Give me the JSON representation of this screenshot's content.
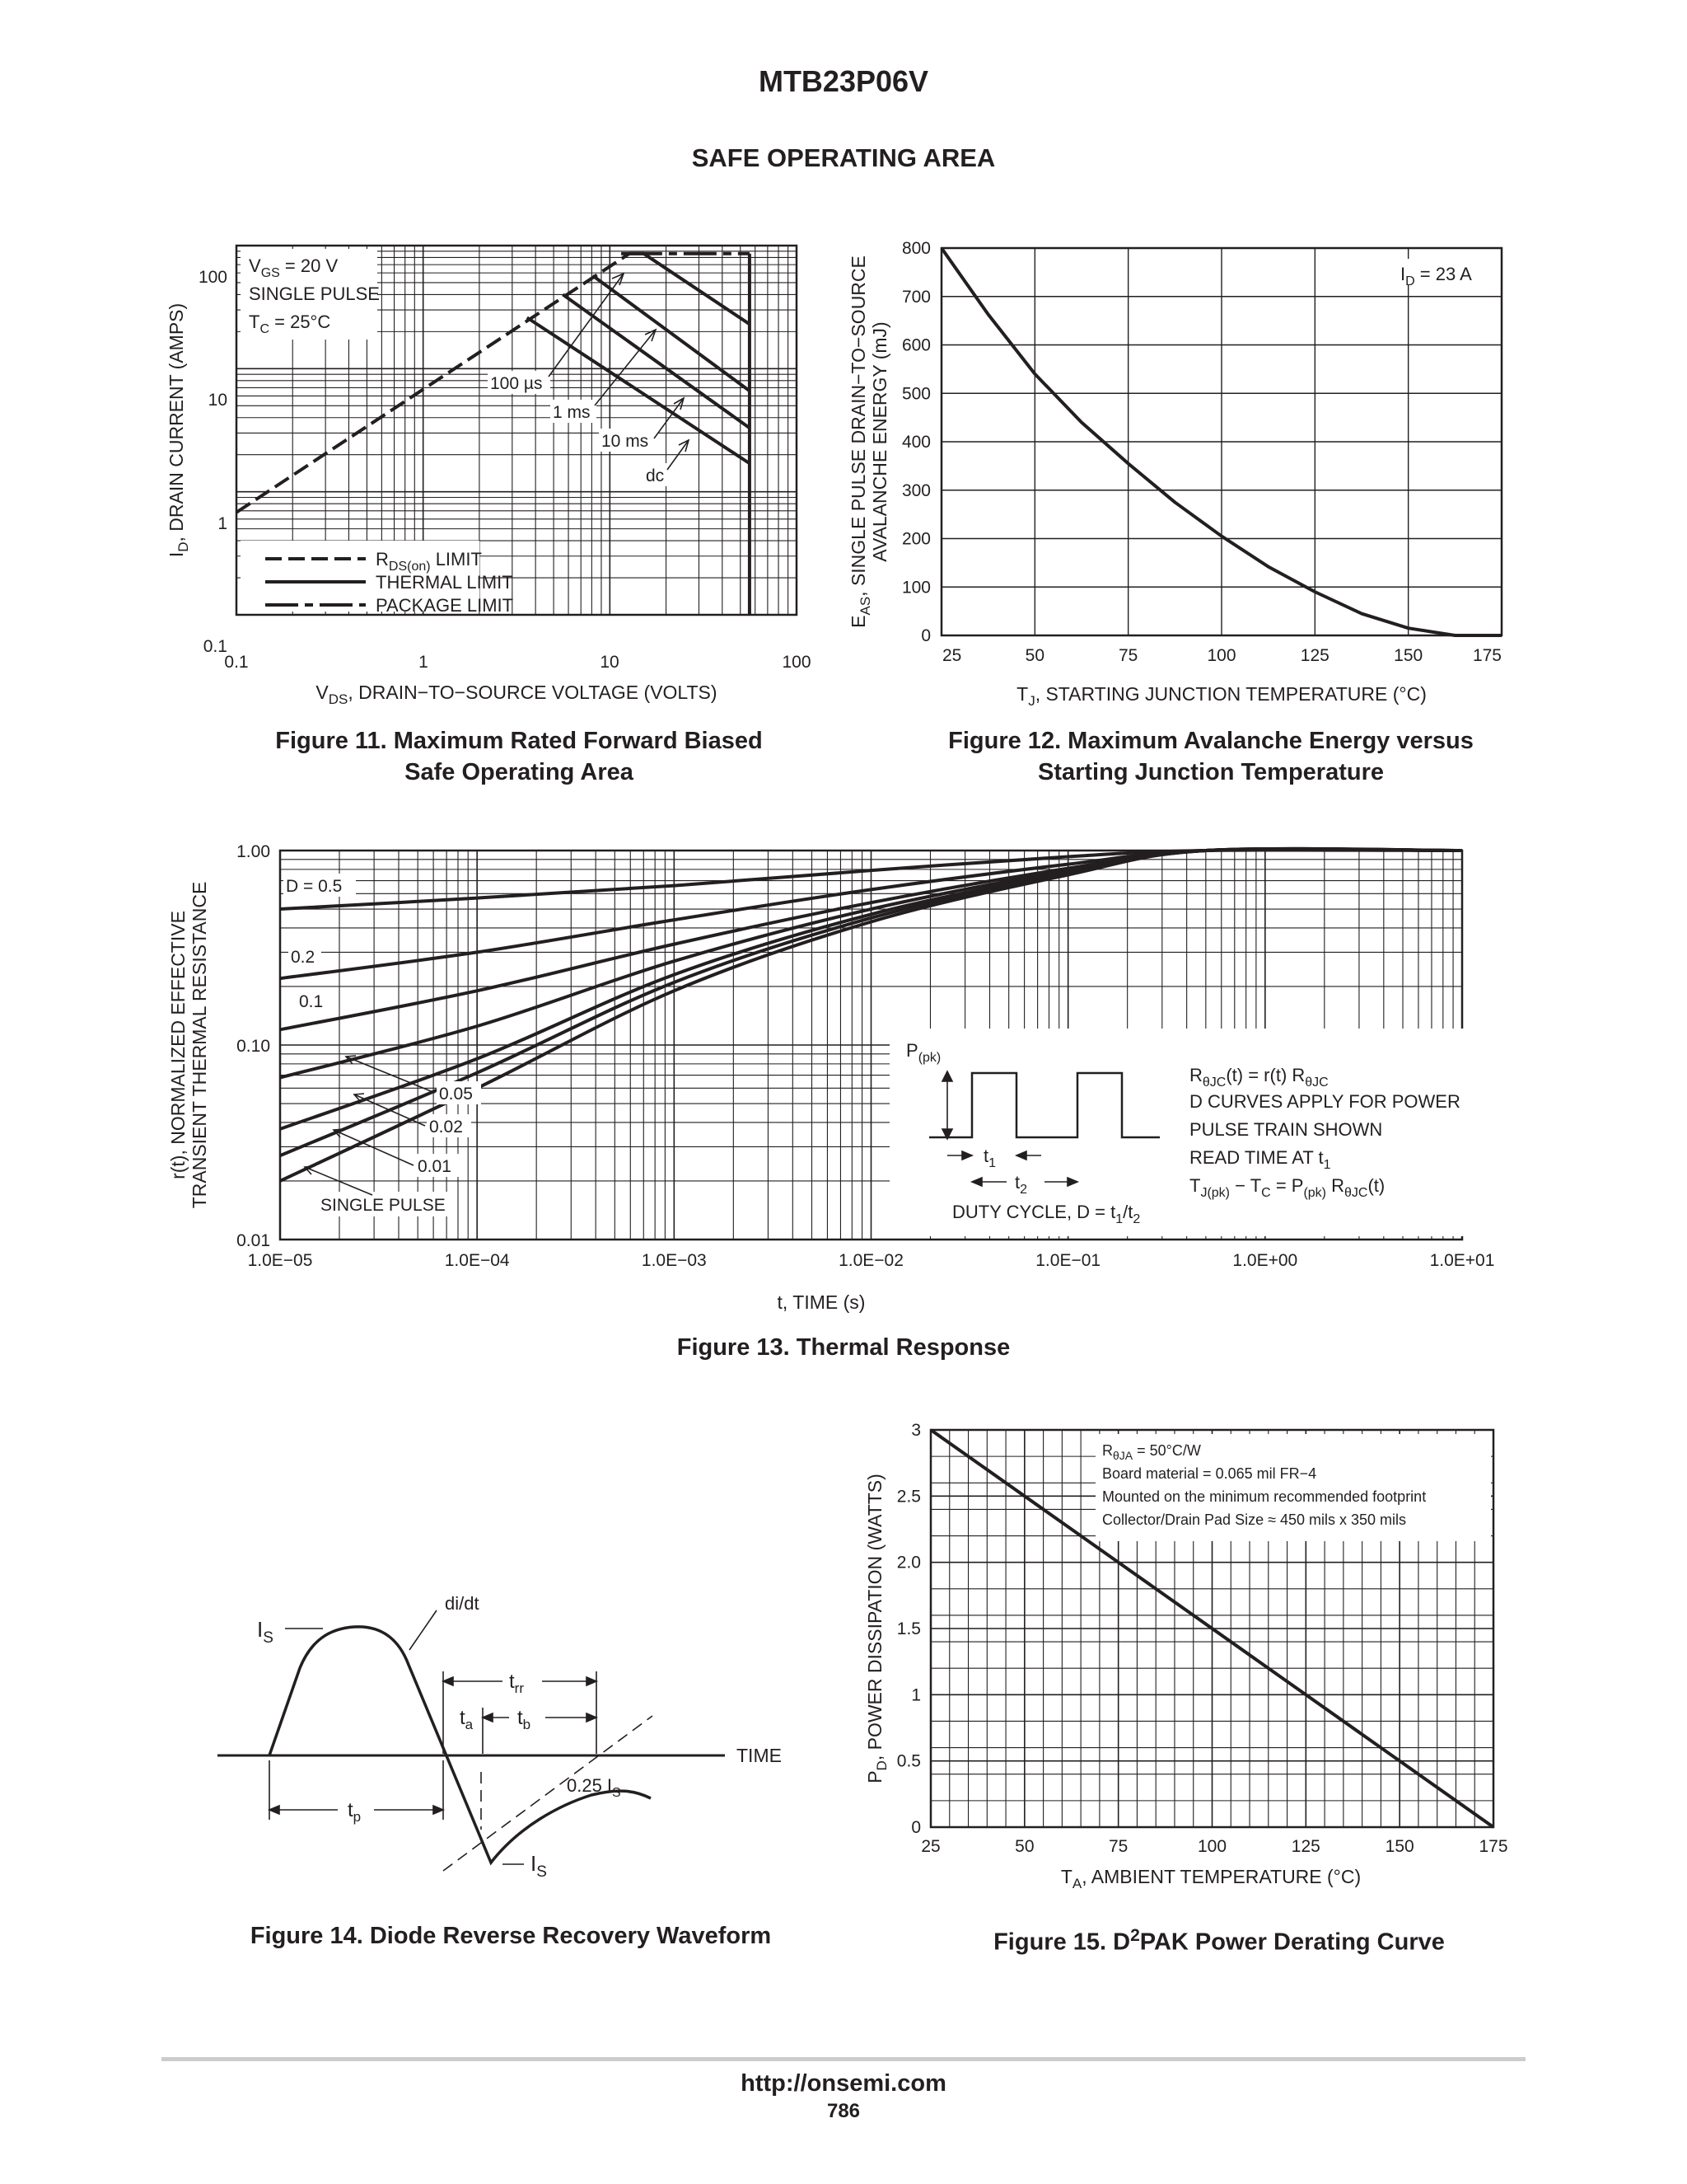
{
  "page": {
    "title": "MTB23P06V",
    "section": "SAFE OPERATING AREA",
    "footer_url": "http://onsemi.com",
    "page_number": "786"
  },
  "captions": {
    "fig11_line1": "Figure 11. Maximum Rated Forward Biased",
    "fig11_line2": "Safe Operating Area",
    "fig12_line1": "Figure 12. Maximum Avalanche Energy versus",
    "fig12_line2": "Starting Junction Temperature",
    "fig13": "Figure 13. Thermal Response",
    "fig14": "Figure 14. Diode Reverse Recovery Waveform",
    "fig15_pre": "Figure 15. D",
    "fig15_sup": "2",
    "fig15_post": "PAK Power Derating Curve"
  },
  "fig11": {
    "xlabel_main": "V",
    "xlabel_sub": "DS",
    "xlabel_rest": ", DRAIN−TO−SOURCE VOLTAGE (VOLTS)",
    "ylabel_main": "I",
    "ylabel_sub": "D",
    "ylabel_rest": ", DRAIN CURRENT (AMPS)",
    "xticks": [
      "0.1",
      "1",
      "10",
      "100"
    ],
    "yticks": [
      "0.1",
      "1",
      "10",
      "100"
    ],
    "cond1_main": "V",
    "cond1_sub": "GS",
    "cond1_rest": " = 20 V",
    "cond2": "SINGLE PULSE",
    "cond3_main": "T",
    "cond3_sub": "C",
    "cond3_rest": " = 25°C",
    "label_100us": "100 µs",
    "label_1ms": "1 ms",
    "label_10ms": "10 ms",
    "label_dc": "dc",
    "legend_rds_main": "R",
    "legend_rds_sub": "DS(on)",
    "legend_rds_rest": " LIMIT",
    "legend_thermal": "THERMAL LIMIT",
    "legend_package": "PACKAGE LIMIT"
  },
  "fig12": {
    "ylabel_line1_main": "E",
    "ylabel_line1_sub": "AS",
    "ylabel_line1_rest": ", SINGLE PULSE DRAIN−TO−SOURCE",
    "ylabel_line2": "AVALANCHE ENERGY (mJ)",
    "xlabel_main": "T",
    "xlabel_sub": "J",
    "xlabel_rest": ", STARTING JUNCTION TEMPERATURE (°C)",
    "xticks": [
      "25",
      "50",
      "75",
      "100",
      "125",
      "150",
      "175"
    ],
    "yticks": [
      "0",
      "100",
      "200",
      "300",
      "400",
      "500",
      "600",
      "700",
      "800"
    ],
    "cond_main": "I",
    "cond_sub": "D",
    "cond_rest": " = 23 A"
  },
  "fig13": {
    "ylabel_line1": "r(t), NORMALIZED EFFECTIVE",
    "ylabel_line2": "TRANSIENT THERMAL RESISTANCE",
    "xlabel": "t, TIME (s)",
    "xticks": [
      "1.0E−05",
      "1.0E−04",
      "1.0E−03",
      "1.0E−02",
      "1.0E−01",
      "1.0E+00",
      "1.0E+01"
    ],
    "yticks": [
      "0.01",
      "0.10",
      "1.00"
    ],
    "label_d05": "D = 0.5",
    "label_02": "0.2",
    "label_01": "0.1",
    "label_005": "0.05",
    "label_002": "0.02",
    "label_001": "0.01",
    "label_single": "SINGLE PULSE",
    "ppk_main": "P",
    "ppk_sub": "(pk)",
    "t1_main": "t",
    "t1_sub": "1",
    "t2_main": "t",
    "t2_sub": "2",
    "duty_main": "DUTY CYCLE, D = t",
    "duty_sub1": "1",
    "duty_mid": "/t",
    "duty_sub2": "2",
    "note1_a": "R",
    "note1_b": "θJC",
    "note1_c": "(t) = r(t) R",
    "note1_d": "θJC",
    "note2": "D CURVES APPLY FOR POWER",
    "note3": "PULSE TRAIN SHOWN",
    "note4_a": "READ TIME AT t",
    "note4_b": "1",
    "note5_a": "T",
    "note5_b": "J(pk)",
    "note5_c": " − T",
    "note5_d": "C",
    "note5_e": " = P",
    "note5_f": "(pk)",
    "note5_g": " R",
    "note5_h": "θJC",
    "note5_i": "(t)"
  },
  "fig14": {
    "didt": "di/dt",
    "is_main": "I",
    "is_sub": "S",
    "trr_main": "t",
    "trr_sub": "rr",
    "ta_main": "t",
    "ta_sub": "a",
    "tb_main": "t",
    "tb_sub": "b",
    "time": "TIME",
    "tp_main": "t",
    "tp_sub": "p",
    "q_main": "0.25 I",
    "q_sub": "S"
  },
  "fig15": {
    "ylabel_main": "P",
    "ylabel_sub": "D",
    "ylabel_rest": ", POWER DISSIPATION (WATTS)",
    "xlabel_main": "T",
    "xlabel_sub": "A",
    "xlabel_rest": ", AMBIENT TEMPERATURE (°C)",
    "xticks": [
      "25",
      "50",
      "75",
      "100",
      "125",
      "150",
      "175"
    ],
    "yticks": [
      "0",
      "0.5",
      "1",
      "1.5",
      "2.0",
      "2.5",
      "3"
    ],
    "note1_main": "R",
    "note1_sub": "θJA",
    "note1_rest": " = 50°C/W",
    "note2": "Board material = 0.065 mil FR−4",
    "note3": "Mounted on the minimum recommended footprint",
    "note4": "Collector/Drain Pad Size ≈ 450 mils x 350 mils"
  },
  "chart_data": [
    {
      "type": "line",
      "title": "Figure 11. Maximum Rated Forward Biased Safe Operating Area",
      "xlabel": "VDS, DRAIN−TO−SOURCE VOLTAGE (VOLTS)",
      "ylabel": "ID, DRAIN CURRENT (AMPS)",
      "xscale": "log",
      "yscale": "log",
      "xlim": [
        0.1,
        100
      ],
      "ylim": [
        0.1,
        100
      ],
      "grid": true,
      "legend": "bottom-left",
      "series": [
        {
          "name": "RDS(on) LIMIT",
          "x": [
            0.1,
            12.7
          ],
          "y": [
            0.68,
            86.0
          ]
        },
        {
          "name": "PACKAGE LIMIT",
          "x": [
            12.7,
            56
          ],
          "y": [
            86.0,
            86.0
          ]
        },
        {
          "name": "100 µs",
          "x": [
            11.5,
            15.2,
            56
          ],
          "y": [
            86.0,
            86.0,
            23.0
          ]
        },
        {
          "name": "1 ms",
          "x": [
            8.1,
            56
          ],
          "y": [
            57.0,
            6.6
          ]
        },
        {
          "name": "10 ms",
          "x": [
            5.6,
            56
          ],
          "y": [
            40.0,
            3.3
          ]
        },
        {
          "name": "dc",
          "x": [
            3.6,
            56
          ],
          "y": [
            26.0,
            1.7
          ]
        },
        {
          "name": "VDSS",
          "x": [
            56,
            56
          ],
          "y": [
            0.1,
            86.0
          ]
        }
      ]
    },
    {
      "type": "line",
      "title": "Figure 12. Maximum Avalanche Energy versus Starting Junction Temperature",
      "xlabel": "TJ, STARTING JUNCTION TEMPERATURE (°C)",
      "ylabel": "EAS, SINGLE PULSE DRAIN−TO−SOURCE AVALANCHE ENERGY (mJ)",
      "xlim": [
        25,
        175
      ],
      "ylim": [
        0,
        800
      ],
      "grid": true,
      "annotation": "ID = 23 A",
      "x": [
        25,
        37.5,
        50,
        62.5,
        75,
        87.5,
        100,
        112.5,
        125,
        137.5,
        150,
        162.5,
        175
      ],
      "y": [
        800,
        663,
        540,
        440,
        355,
        275,
        205,
        142,
        90,
        45,
        15,
        0,
        0
      ]
    },
    {
      "type": "line",
      "title": "Figure 13. Thermal Response",
      "xlabel": "t, TIME (s)",
      "ylabel": "r(t), NORMALIZED EFFECTIVE TRANSIENT THERMAL RESISTANCE",
      "xscale": "log",
      "yscale": "log",
      "xlim": [
        1e-05,
        10
      ],
      "ylim": [
        0.01,
        1
      ],
      "grid": true,
      "x": [
        1e-05,
        0.0001,
        0.001,
        0.01,
        0.1,
        0.5,
        10
      ],
      "series": [
        {
          "name": "D = 0.5",
          "y": [
            0.5,
            0.57,
            0.66,
            0.79,
            0.93,
            1.0,
            1.0
          ]
        },
        {
          "name": "0.2",
          "y": [
            0.22,
            0.3,
            0.44,
            0.63,
            0.85,
            1.0,
            1.0
          ]
        },
        {
          "name": "0.1",
          "y": [
            0.12,
            0.19,
            0.33,
            0.54,
            0.81,
            1.0,
            1.0
          ]
        },
        {
          "name": "0.05",
          "y": [
            0.068,
            0.125,
            0.27,
            0.5,
            0.79,
            1.0,
            1.0
          ]
        },
        {
          "name": "0.02",
          "y": [
            0.037,
            0.085,
            0.23,
            0.47,
            0.77,
            1.0,
            1.0
          ]
        },
        {
          "name": "0.01",
          "y": [
            0.027,
            0.072,
            0.21,
            0.45,
            0.76,
            1.0,
            1.0
          ]
        },
        {
          "name": "SINGLE PULSE",
          "y": [
            0.02,
            0.06,
            0.19,
            0.43,
            0.75,
            1.0,
            1.0
          ]
        }
      ]
    },
    {
      "type": "line",
      "title": "Figure 15. D2PAK Power Derating Curve",
      "xlabel": "TA, AMBIENT TEMPERATURE (°C)",
      "ylabel": "PD, POWER DISSIPATION (WATTS)",
      "xlim": [
        25,
        175
      ],
      "ylim": [
        0,
        3
      ],
      "grid": true,
      "x": [
        25,
        175
      ],
      "y": [
        3,
        0
      ]
    }
  ]
}
